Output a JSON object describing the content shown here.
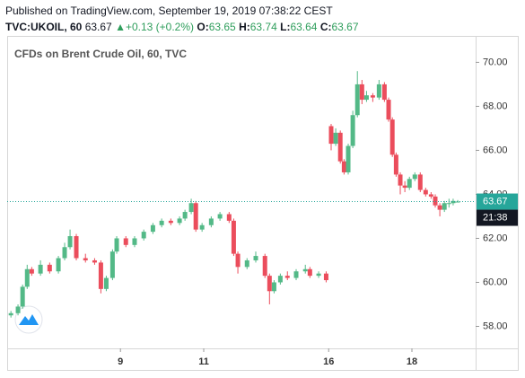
{
  "header": {
    "published": "Published on TradingView.com, September 19, 2019 07:38:22 CEST",
    "symbol": "TVC:UKOIL, 60",
    "last": "63.67",
    "change": "+0.13 (+0.2%)",
    "ohlc": [
      {
        "label": "O:",
        "value": "63.65"
      },
      {
        "label": "H:",
        "value": "63.74"
      },
      {
        "label": "L:",
        "value": "63.64"
      },
      {
        "label": "C:",
        "value": "63.67"
      }
    ]
  },
  "chart_data": {
    "type": "candlestick",
    "title": "CFDs on Brent Crude Oil, 60, TVC",
    "up_color": "#53b987",
    "down_color": "#eb4d5c",
    "xlim": [
      -0.72,
      10.53
    ],
    "ylim": [
      57.0,
      71.2
    ],
    "xticks": [
      {
        "value": 2,
        "label": "9"
      },
      {
        "value": 4,
        "label": "11"
      },
      {
        "value": 7,
        "label": "16"
      },
      {
        "value": 9,
        "label": "18"
      }
    ],
    "yticks": [
      {
        "value": 58,
        "label": "58.00"
      },
      {
        "value": 60,
        "label": "60.00"
      },
      {
        "value": 62,
        "label": "62.00"
      },
      {
        "value": 64,
        "label": "64.00"
      },
      {
        "value": 66,
        "label": "66.00"
      },
      {
        "value": 68,
        "label": "68.00"
      },
      {
        "value": 70,
        "label": "70.00"
      }
    ],
    "last_price": 63.67,
    "countdown": "21:38",
    "x": [
      -0.63,
      -0.46,
      -0.35,
      -0.24,
      -0.13,
      0.08,
      0.3,
      0.51,
      0.66,
      0.79,
      0.94,
      1.16,
      1.38,
      1.53,
      1.66,
      1.81,
      1.91,
      2.13,
      2.34,
      2.56,
      2.78,
      2.99,
      3.21,
      3.42,
      3.55,
      3.7,
      3.81,
      3.96,
      4.18,
      4.39,
      4.61,
      4.72,
      4.82,
      5.04,
      5.25,
      5.47,
      5.58,
      5.69,
      5.84,
      6.01,
      6.22,
      6.44,
      6.55,
      6.76,
      6.94,
      7.06,
      7.17,
      7.28,
      7.37,
      7.47,
      7.58,
      7.69,
      7.8,
      7.91,
      8.06,
      8.21,
      8.34,
      8.44,
      8.53,
      8.62,
      8.72,
      8.83,
      8.94,
      9.07,
      9.2,
      9.33,
      9.46,
      9.56,
      9.67,
      9.78,
      9.89,
      9.99,
      10.1
    ],
    "open": [
      58.5,
      58.6,
      58.9,
      59.8,
      60.6,
      60.4,
      60.8,
      60.5,
      61.1,
      61.6,
      62.1,
      61.1,
      61.0,
      60.9,
      59.7,
      60.2,
      61.4,
      62.0,
      61.7,
      62.0,
      62.3,
      62.6,
      62.8,
      62.7,
      62.9,
      63.2,
      63.6,
      62.4,
      62.6,
      62.9,
      63.1,
      62.8,
      61.3,
      60.7,
      61.0,
      61.2,
      60.3,
      59.6,
      60.0,
      60.3,
      60.2,
      60.5,
      60.6,
      60.3,
      60.4,
      67.1,
      66.3,
      66.8,
      65.5,
      65.0,
      66.2,
      67.6,
      69.0,
      68.3,
      68.5,
      68.4,
      69.0,
      68.3,
      67.4,
      65.8,
      64.9,
      64.4,
      64.3,
      64.7,
      64.9,
      64.2,
      64.0,
      63.9,
      63.5,
      63.3,
      63.6,
      63.6,
      63.65
    ],
    "high": [
      58.7,
      59.0,
      59.9,
      60.8,
      60.7,
      61.0,
      60.9,
      61.2,
      61.8,
      62.4,
      62.2,
      61.3,
      61.1,
      61.0,
      60.3,
      61.5,
      62.1,
      62.1,
      62.1,
      62.4,
      62.7,
      62.9,
      62.9,
      63.0,
      63.3,
      63.8,
      63.7,
      62.7,
      63.0,
      63.2,
      63.2,
      62.9,
      61.4,
      61.1,
      61.4,
      61.3,
      60.4,
      60.1,
      60.4,
      60.5,
      60.6,
      60.8,
      60.7,
      60.5,
      60.5,
      67.2,
      67.0,
      66.9,
      65.6,
      66.3,
      67.8,
      69.6,
      69.2,
      68.7,
      68.6,
      69.2,
      69.1,
      68.4,
      67.5,
      65.9,
      65.0,
      64.6,
      64.8,
      65.0,
      65.0,
      64.3,
      64.1,
      64.0,
      63.6,
      63.7,
      63.8,
      63.8,
      63.74
    ],
    "low": [
      58.4,
      58.5,
      58.8,
      59.7,
      60.3,
      60.3,
      60.4,
      60.4,
      61.0,
      61.5,
      61.0,
      60.9,
      60.8,
      59.5,
      59.6,
      60.1,
      61.3,
      61.6,
      61.6,
      61.9,
      62.2,
      62.5,
      62.6,
      62.6,
      62.8,
      63.1,
      62.3,
      62.3,
      62.5,
      62.8,
      62.7,
      61.2,
      60.4,
      60.6,
      60.9,
      60.2,
      59.0,
      59.5,
      59.9,
      60.1,
      60.1,
      60.4,
      60.2,
      60.2,
      60.0,
      66.0,
      66.2,
      65.4,
      64.9,
      64.9,
      66.1,
      67.5,
      68.1,
      68.2,
      68.2,
      68.3,
      68.2,
      67.3,
      65.7,
      64.8,
      64.0,
      64.1,
      64.2,
      64.6,
      64.1,
      63.9,
      63.8,
      63.4,
      63.0,
      63.2,
      63.4,
      63.5,
      63.64
    ],
    "close": [
      58.6,
      58.9,
      59.8,
      60.6,
      60.4,
      60.8,
      60.5,
      61.1,
      61.6,
      62.1,
      61.1,
      61.0,
      60.9,
      59.7,
      60.2,
      61.4,
      62.0,
      61.7,
      62.0,
      62.3,
      62.6,
      62.8,
      62.7,
      62.9,
      63.2,
      63.6,
      62.4,
      62.6,
      62.9,
      63.1,
      62.8,
      61.3,
      60.7,
      61.0,
      61.2,
      60.3,
      59.6,
      60.0,
      60.3,
      60.2,
      60.5,
      60.6,
      60.3,
      60.4,
      60.1,
      66.3,
      66.8,
      65.5,
      65.0,
      66.2,
      67.6,
      69.0,
      68.3,
      68.5,
      68.4,
      69.0,
      68.3,
      67.4,
      65.8,
      64.9,
      64.4,
      64.3,
      64.7,
      64.9,
      64.2,
      64.0,
      63.9,
      63.5,
      63.3,
      63.6,
      63.6,
      63.7,
      63.67
    ]
  }
}
